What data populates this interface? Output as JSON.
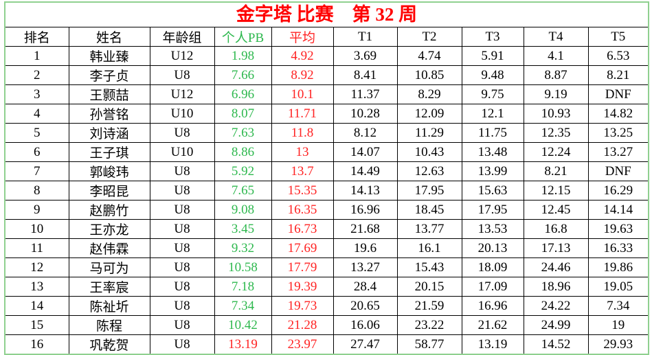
{
  "title": "金字塔 比赛　第 32 周",
  "table": {
    "header": [
      "排名",
      "姓名",
      "年龄组",
      "个人PB",
      "平均",
      "T1",
      "T2",
      "T3",
      "T4",
      "T5"
    ],
    "rows": [
      [
        "1",
        "韩业臻",
        "U12",
        "1.98",
        "4.92",
        "3.69",
        "4.74",
        "5.91",
        "4.1",
        "6.53"
      ],
      [
        "2",
        "李子贞",
        "U8",
        "7.66",
        "8.92",
        "8.41",
        "10.85",
        "9.48",
        "8.87",
        "8.21"
      ],
      [
        "3",
        "王颢喆",
        "U12",
        "6.96",
        "10.1",
        "11.37",
        "8.29",
        "9.75",
        "9.19",
        "DNF"
      ],
      [
        "4",
        "孙誉铭",
        "U10",
        "8.07",
        "11.71",
        "10.28",
        "12.09",
        "12.1",
        "10.93",
        "14.82"
      ],
      [
        "5",
        "刘诗涵",
        "U8",
        "7.63",
        "11.8",
        "8.12",
        "11.29",
        "11.75",
        "12.35",
        "13.25"
      ],
      [
        "6",
        "王子琪",
        "U10",
        "8.86",
        "13",
        "14.07",
        "10.43",
        "13.48",
        "12.24",
        "13.27"
      ],
      [
        "7",
        "郭峻玮",
        "U8",
        "5.92",
        "13.7",
        "14.49",
        "12.63",
        "13.99",
        "8.21",
        "DNF"
      ],
      [
        "8",
        "李昭昆",
        "U8",
        "7.65",
        "15.35",
        "14.13",
        "17.95",
        "15.63",
        "12.15",
        "16.29"
      ],
      [
        "9",
        "赵鹏竹",
        "U8",
        "9.08",
        "16.35",
        "16.96",
        "18.45",
        "17.95",
        "12.45",
        "14.14"
      ],
      [
        "10",
        "王亦龙",
        "U8",
        "3.45",
        "16.73",
        "21.68",
        "13.77",
        "13.53",
        "16.8",
        "19.63"
      ],
      [
        "11",
        "赵伟霖",
        "U8",
        "9.32",
        "17.69",
        "19.6",
        "16.1",
        "20.13",
        "17.13",
        "16.33"
      ],
      [
        "12",
        "马可为",
        "U8",
        "10.58",
        "17.79",
        "13.27",
        "15.43",
        "18.09",
        "24.46",
        "19.86"
      ],
      [
        "13",
        "王率宸",
        "U8",
        "7.18",
        "19.39",
        "28.4",
        "20.15",
        "17.09",
        "18.96",
        "19.05"
      ],
      [
        "14",
        "陈祉圻",
        "U8",
        "7.34",
        "19.73",
        "20.65",
        "21.59",
        "16.96",
        "24.22",
        "7.34"
      ],
      [
        "15",
        "陈程",
        "U8",
        "10.42",
        "21.28",
        "16.06",
        "23.22",
        "21.62",
        "24.99",
        "19"
      ],
      [
        "16",
        "巩乾贺",
        "U8",
        "13.19",
        "23.97",
        "27.47",
        "58.77",
        "13.19",
        "14.52",
        "29.93"
      ]
    ]
  }
}
